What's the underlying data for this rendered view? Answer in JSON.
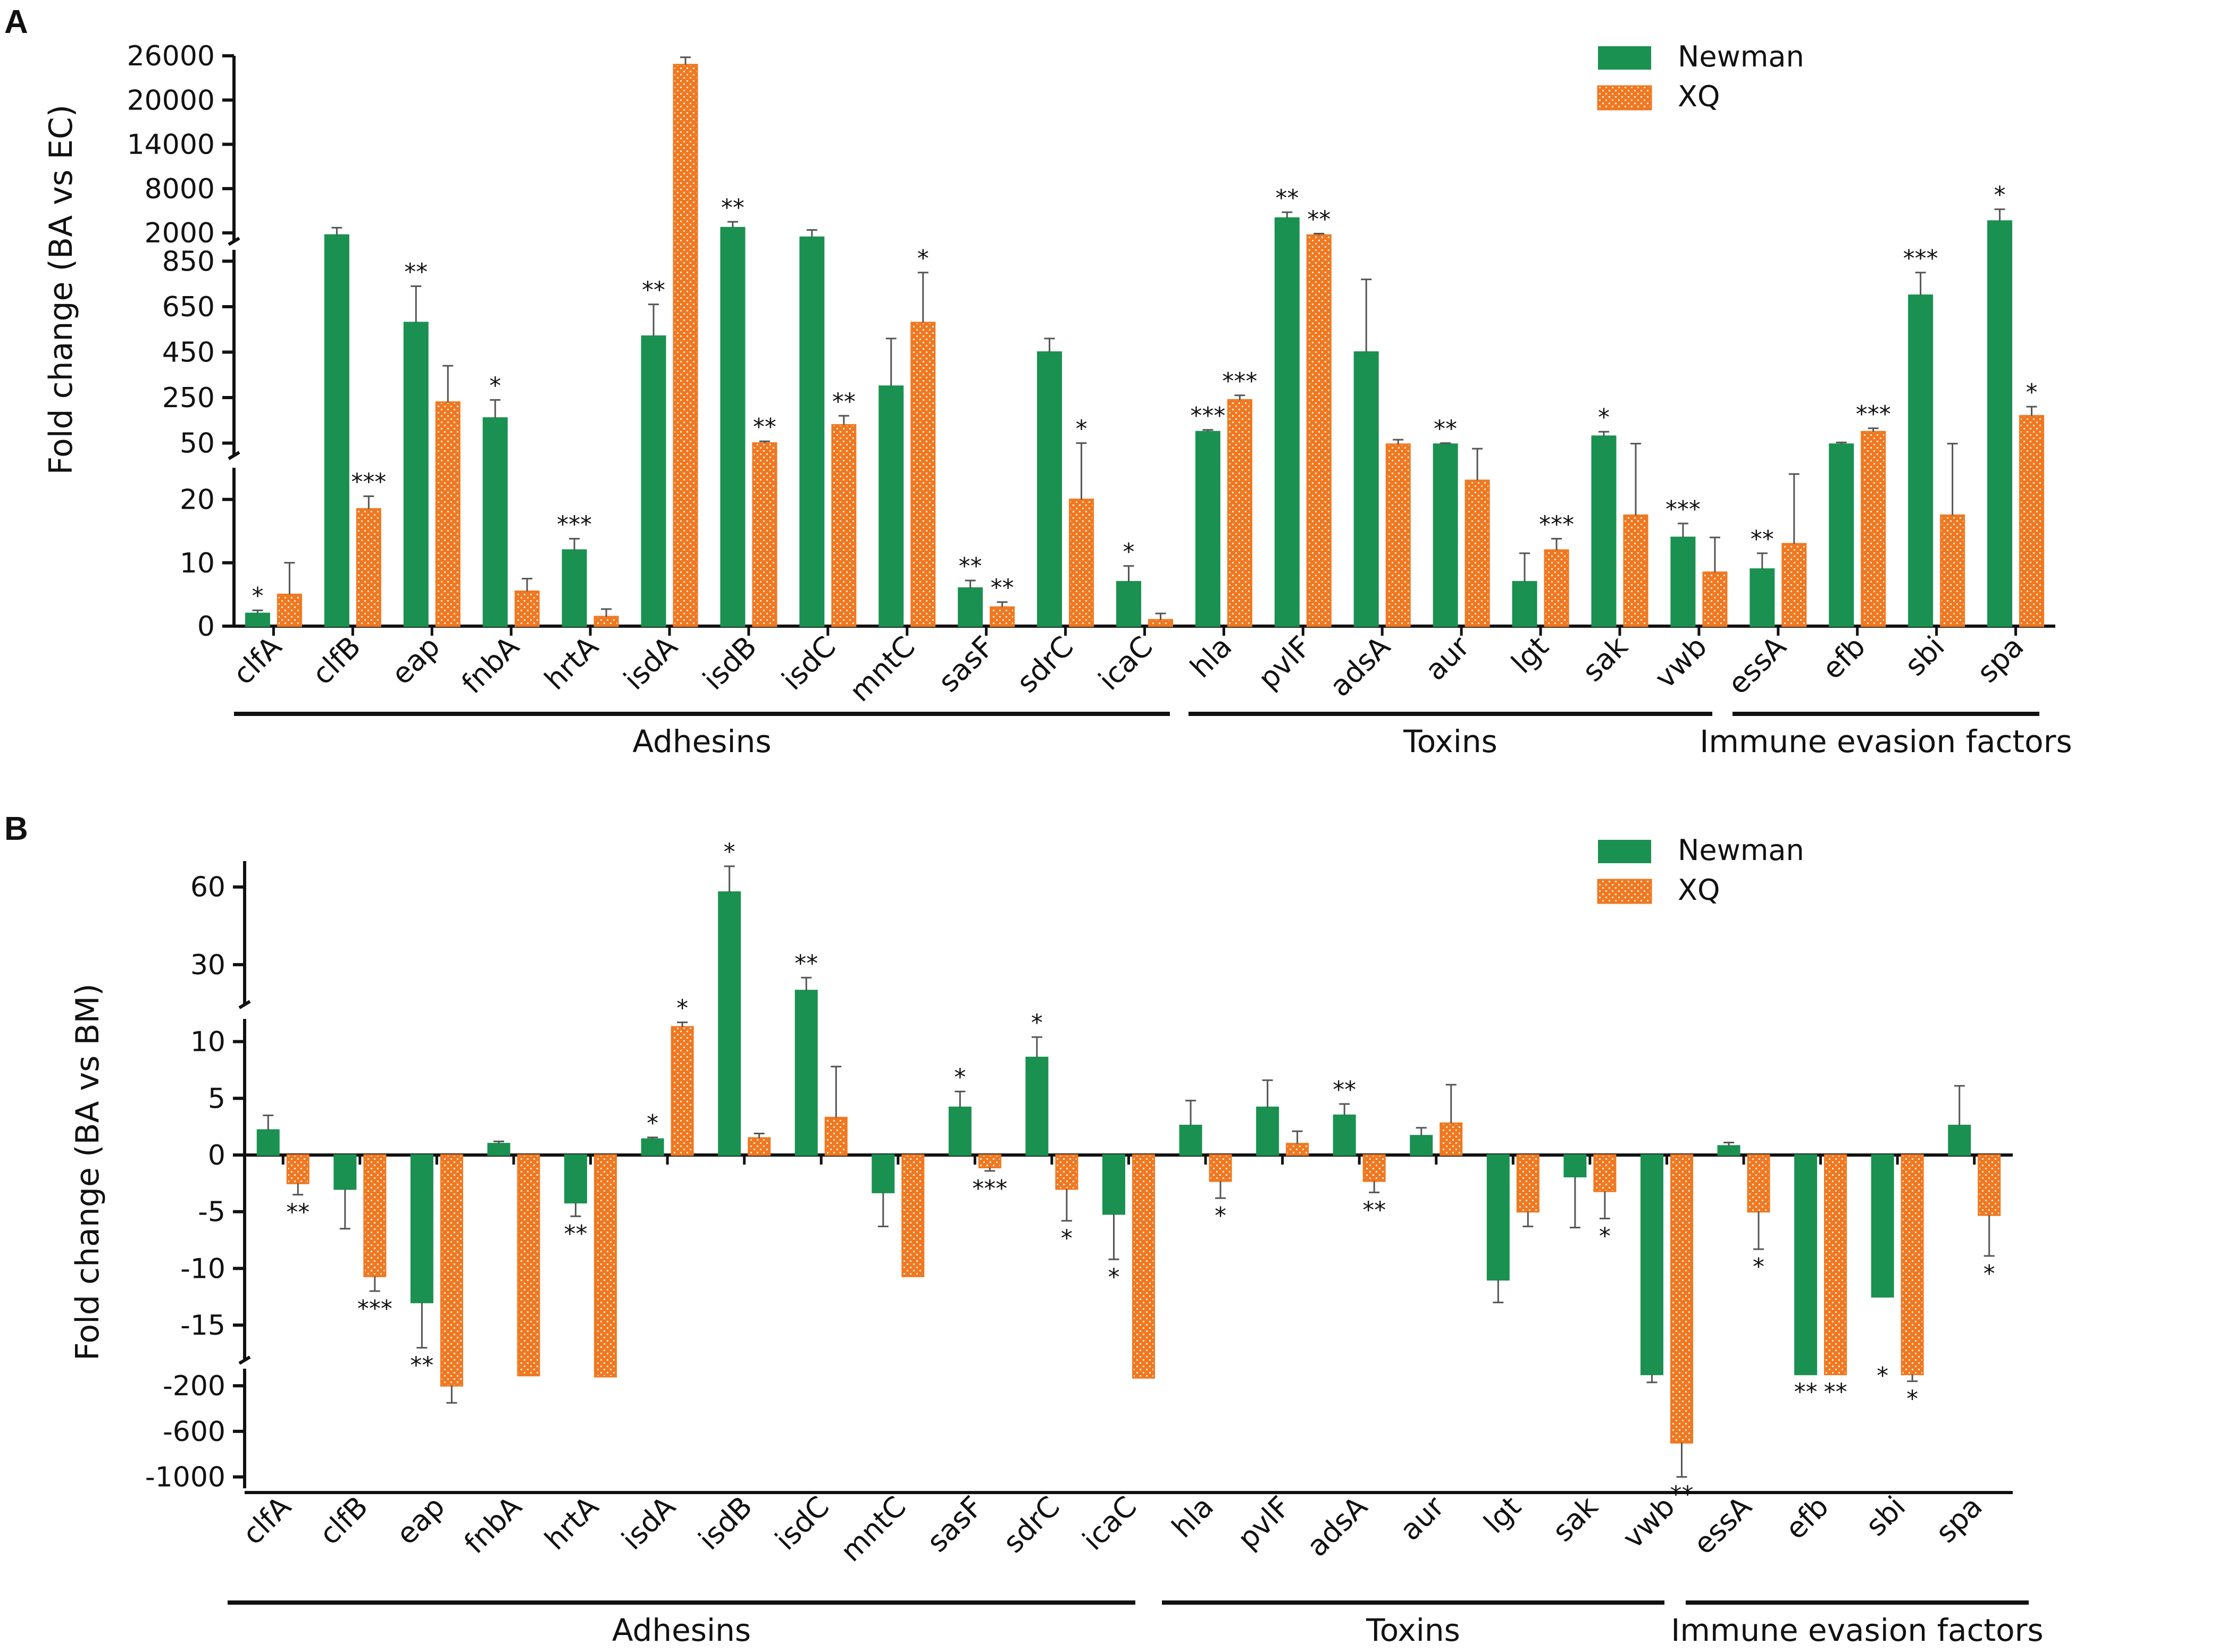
{
  "colors": {
    "newman": "#1a9150",
    "xq": "#f07820",
    "axis": "#111111"
  },
  "chart_data": [
    {
      "panel": "A",
      "type": "bar",
      "ylabel": "Fold change (BA vs EC)",
      "legend": {
        "placement": "top-right",
        "entries": [
          "Newman",
          "XQ"
        ]
      },
      "categories": [
        "clfA",
        "clfB",
        "eap",
        "fnbA",
        "hrtA",
        "isdA",
        "isdB",
        "isdC",
        "mntC",
        "sasF",
        "sdrC",
        "icaC",
        "hla",
        "pvlF",
        "adsA",
        "aur",
        "lgt",
        "sak",
        "vwb",
        "essA",
        "efb",
        "sbi",
        "spa"
      ],
      "y_segments": [
        {
          "range": [
            0,
            25
          ],
          "ticks": [
            "0",
            "10",
            "20"
          ],
          "tick_values": [
            0,
            10,
            20
          ]
        },
        {
          "range": [
            0,
            900
          ],
          "ticks": [
            "50",
            "250",
            "450",
            "650",
            "850"
          ],
          "tick_values": [
            50,
            250,
            450,
            650,
            850
          ]
        },
        {
          "range": [
            0,
            26000
          ],
          "ticks": [
            "2000",
            "8000",
            "14000",
            "20000",
            "26000"
          ],
          "tick_values": [
            2000,
            8000,
            14000,
            20000,
            26000
          ]
        }
      ],
      "series": [
        {
          "name": "Newman",
          "values": [
            2,
            1700,
            580,
            160,
            12,
            520,
            2700,
            1400,
            300,
            6,
            450,
            7,
            100,
            4000,
            450,
            45,
            7,
            80,
            14,
            9,
            45,
            700,
            3600
          ],
          "errors": [
            0.5,
            1000,
            160,
            80,
            1.8,
            140,
            800,
            1000,
            210,
            1.2,
            60,
            2.5,
            8,
            800,
            320,
            5,
            4.5,
            20,
            2.2,
            2.5,
            8,
            100,
            1600
          ],
          "sig": [
            "*",
            "",
            "**",
            "*",
            "***",
            "**",
            "**",
            "",
            "",
            "**",
            "",
            "*",
            "***",
            "**",
            "",
            "**",
            "",
            "*",
            "***",
            "**",
            "",
            "***",
            "*"
          ]
        },
        {
          "name": "XQ",
          "values": [
            5,
            18.5,
            230,
            5.5,
            1.5,
            24800,
            50,
            130,
            580,
            3,
            20,
            1,
            240,
            1700,
            45,
            23,
            12,
            17.5,
            8.5,
            13,
            100,
            17.5,
            170
          ],
          "errors": [
            5,
            2,
            160,
            2,
            1.2,
            1000,
            8,
            40,
            220,
            0.8,
            30,
            1,
            20,
            200,
            20,
            2.5,
            1.8,
            30,
            5.5,
            11,
            15,
            30,
            40
          ],
          "sig": [
            "",
            "***",
            "",
            "",
            "",
            "",
            "**",
            "**",
            "*",
            "**",
            "*",
            "",
            "***",
            "**",
            "",
            "",
            "***",
            "",
            "",
            "",
            "***",
            "",
            "*"
          ]
        }
      ]
    },
    {
      "panel": "B",
      "type": "bar",
      "ylabel": "Fold change (BA vs BM)",
      "legend": {
        "placement": "top-right",
        "entries": [
          "Newman",
          "XQ"
        ]
      },
      "categories": [
        "clfA",
        "clfB",
        "eap",
        "fnbA",
        "hrtA",
        "isdA",
        "isdB",
        "isdC",
        "mntC",
        "sasF",
        "sdrC",
        "icaC",
        "hla",
        "pvlF",
        "adsA",
        "aur",
        "lgt",
        "sak",
        "vwb",
        "essA",
        "efb",
        "sbi",
        "spa"
      ],
      "y_segments": [
        {
          "range": [
            -1100,
            -50
          ],
          "ticks": [
            "-200",
            "-600",
            "-1000"
          ],
          "tick_values": [
            -200,
            -600,
            -1000
          ]
        },
        {
          "range": [
            -18,
            12
          ],
          "ticks": [
            "10",
            "5",
            "0",
            "-5",
            "-10",
            "-15"
          ],
          "tick_values": [
            10,
            5,
            0,
            -5,
            -10,
            -15
          ]
        },
        {
          "range": [
            15,
            70
          ],
          "ticks": [
            "60",
            "30"
          ],
          "tick_values": [
            60,
            30
          ]
        }
      ],
      "series": [
        {
          "name": "Newman",
          "values": [
            2.2,
            -3,
            -13,
            1,
            -4.2,
            1.4,
            58,
            20,
            -3.3,
            4.2,
            8.6,
            -5.2,
            2.6,
            4.2,
            3.5,
            1.7,
            -11,
            -1.9,
            -100,
            0.8,
            -100,
            -12.5,
            2.6
          ],
          "errors": [
            1.3,
            3.5,
            4,
            0.2,
            1.2,
            0.15,
            10,
            5,
            3,
            1.4,
            1.8,
            4,
            2.2,
            2.4,
            1,
            0.7,
            2,
            4.5,
            70,
            0.3,
            0,
            6,
            3.5
          ],
          "sig": [
            "",
            "",
            "**",
            "",
            "**",
            "*",
            "*",
            "**",
            "",
            "*",
            "*",
            "*",
            "",
            "",
            "**",
            "",
            "",
            "",
            "",
            "",
            "**",
            "*",
            ""
          ]
        },
        {
          "name": "XQ",
          "values": [
            -2.5,
            -10.7,
            -200,
            -110,
            -120,
            11.3,
            1.5,
            3.3,
            -10.7,
            -1.1,
            -3,
            -130,
            -2.3,
            1,
            -2.3,
            2.8,
            -5,
            -3.2,
            -700,
            -5,
            -100,
            -100,
            -5.3
          ],
          "errors": [
            1,
            1.3,
            150,
            0,
            0,
            0.4,
            0.4,
            4.5,
            10,
            0.3,
            2.8,
            0,
            1.5,
            1.1,
            1,
            3.4,
            1.3,
            2.4,
            300,
            3.3,
            0,
            60,
            3.6
          ],
          "sig": [
            "**",
            "***",
            "",
            "",
            "",
            "*",
            "",
            "",
            "",
            "***",
            "*",
            "",
            "*",
            "",
            "**",
            "",
            "",
            "*",
            "**",
            "*",
            "**",
            "*",
            "*"
          ]
        }
      ]
    }
  ],
  "groups": {
    "a": [
      "Adhesins",
      "Toxins",
      "Immune evasion factors"
    ],
    "b": [
      "Adhesins",
      "Toxins",
      "Immune evasion factors"
    ]
  }
}
